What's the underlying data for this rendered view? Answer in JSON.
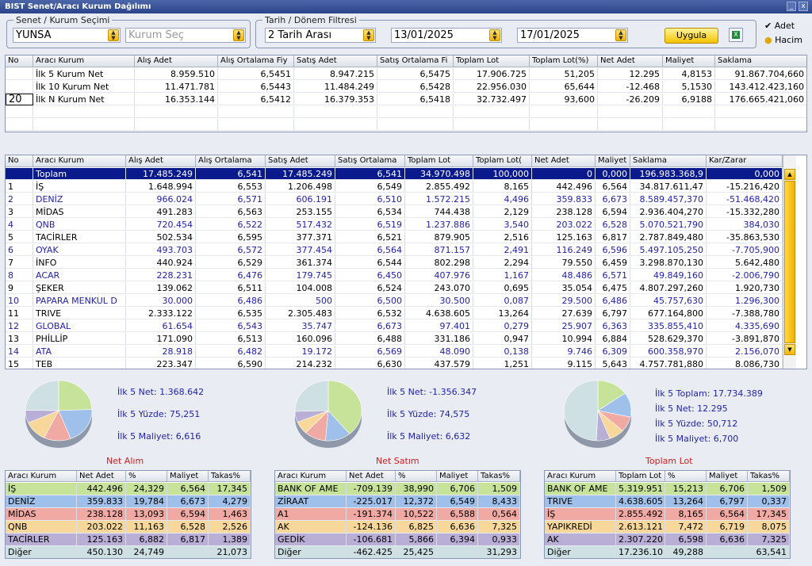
{
  "title": "BIST Senet/Aracı Kurum Dağılımı",
  "window_buttons": {
    "minimize": "_",
    "close": "x"
  },
  "filters": {
    "senet_legend": "Senet / Kurum Seçimi",
    "senet_value": "YUNSA",
    "kurum_placeholder": "Kurum Seç",
    "tarih_legend": "Tarih / Dönem Filtresi",
    "period_value": "2 Tarih Arası",
    "date_from": "13/01/2025",
    "date_to": "17/01/2025",
    "apply_label": "Uygula",
    "excel_glyph": "X",
    "opt_adet": "Adet",
    "opt_hacim": "Hacim"
  },
  "summary": {
    "columns": [
      "No",
      "Aracı Kurum",
      "Alış Adet",
      "Alış Ortalama Fiy",
      "Satış Adet",
      "Satış Ortalama Fi",
      "Toplam Lot",
      "Toplam Lot(%)",
      "Net Adet",
      "Maliyet",
      "Saklama"
    ],
    "rows": [
      [
        "",
        "İlk 5 Kurum Net",
        "8.959.510",
        "6,5451",
        "8.947.215",
        "6,5475",
        "17.906.725",
        "51,205",
        "12.295",
        "4,8153",
        "91.867.704,660"
      ],
      [
        "",
        "İlk 10 Kurum Net",
        "11.471.781",
        "6,5443",
        "11.484.249",
        "6,5428",
        "22.956.030",
        "65,644",
        "-12.468",
        "5,1530",
        "143.412.423,160"
      ],
      [
        "20",
        "İlk N Kurum Net",
        "16.353.144",
        "6,5412",
        "16.379.353",
        "6,5418",
        "32.732.497",
        "93,600",
        "-26.209",
        "6,9188",
        "176.665.421,060"
      ]
    ]
  },
  "main": {
    "columns": [
      "No",
      "Aracı Kurum",
      "Alış Adet",
      "Alış Ortalama",
      "Satış Adet",
      "Satış Ortalama",
      "Toplam Lot",
      "Toplam Lot(",
      "Net Adet",
      "Maliyet",
      "Saklama",
      "Kar/Zarar"
    ],
    "rows": [
      [
        "",
        "Toplam",
        "17.485.249",
        "6,541",
        "17.485.249",
        "6,541",
        "34.970.498",
        "100,000",
        "0",
        "0,000",
        "196.983.368,9",
        "0,000"
      ],
      [
        "1",
        "İŞ",
        "1.648.994",
        "6,553",
        "1.206.498",
        "6,549",
        "2.855.492",
        "8,165",
        "442.496",
        "6,564",
        "34.817.611,47",
        "-15.216,420"
      ],
      [
        "2",
        "DENİZ",
        "966.024",
        "6,571",
        "606.191",
        "6,510",
        "1.572.215",
        "4,496",
        "359.833",
        "6,673",
        "8.589.457,370",
        "-51.468,420"
      ],
      [
        "3",
        "MİDAS",
        "491.283",
        "6,563",
        "253.155",
        "6,534",
        "744.438",
        "2,129",
        "238.128",
        "6,594",
        "2.936.404,270",
        "-15.332,280"
      ],
      [
        "4",
        "QNB",
        "720.454",
        "6,522",
        "517.432",
        "6,519",
        "1.237.886",
        "3,540",
        "203.022",
        "6,528",
        "5.070.521,790",
        "384,030"
      ],
      [
        "5",
        "TACİRLER",
        "502.534",
        "6,595",
        "377.371",
        "6,521",
        "879.905",
        "2,516",
        "125.163",
        "6,817",
        "2.787.849,480",
        "-35.863,530"
      ],
      [
        "6",
        "OYAK",
        "493.703",
        "6,572",
        "377.454",
        "6,564",
        "871.157",
        "2,491",
        "116.249",
        "6,596",
        "5.497.105,250",
        "-7.705,900"
      ],
      [
        "7",
        "İNFO",
        "440.924",
        "6,529",
        "361.374",
        "6,544",
        "802.298",
        "2,294",
        "79.550",
        "6,459",
        "3.298.870,130",
        "5.642,480"
      ],
      [
        "8",
        "ACAR",
        "228.231",
        "6,476",
        "179.745",
        "6,450",
        "407.976",
        "1,167",
        "48.486",
        "6,571",
        "49.849,160",
        "-2.006,790"
      ],
      [
        "9",
        "ŞEKER",
        "139.062",
        "6,511",
        "104.008",
        "6,524",
        "243.070",
        "0,695",
        "35.054",
        "6,475",
        "4.807.297,260",
        "1.920,730"
      ],
      [
        "10",
        "PAPARA MENKUL D",
        "30.000",
        "6,486",
        "500",
        "6,500",
        "30.500",
        "0,087",
        "29.500",
        "6,486",
        "45.757,630",
        "1.296,300"
      ],
      [
        "11",
        "TRIVE",
        "2.333.122",
        "6,535",
        "2.305.483",
        "6,532",
        "4.638.605",
        "13,264",
        "27.639",
        "6,797",
        "677.164,800",
        "-7.388,780"
      ],
      [
        "12",
        "GLOBAL",
        "61.654",
        "6,543",
        "35.747",
        "6,673",
        "97.401",
        "0,279",
        "25.907",
        "6,363",
        "335.855,410",
        "4.335,690"
      ],
      [
        "13",
        "PHİLLİP",
        "171.090",
        "6,513",
        "160.096",
        "6,488",
        "331.186",
        "0,947",
        "10.994",
        "6,884",
        "528.629,370",
        "-3.891,870"
      ],
      [
        "14",
        "ATA",
        "28.918",
        "6,482",
        "19.172",
        "6,569",
        "48.090",
        "0,138",
        "9.746",
        "6,309",
        "600.358,970",
        "2.156,070"
      ],
      [
        "15",
        "TEB",
        "223.347",
        "6,590",
        "214.232",
        "6,630",
        "437.579",
        "1,251",
        "9.115",
        "5,643",
        "4.757.781,880",
        "8.086,730"
      ]
    ]
  },
  "panels": [
    {
      "title": "Net Alım",
      "stats": [
        "İlk 5 Net: 1.368.642",
        "İlk 5 Yüzde: 75,251",
        "İlk 5 Maliyet: 6,616"
      ],
      "columns": [
        "Aracı Kurum",
        "Net Adet",
        "%",
        "Maliyet",
        "Takas%"
      ],
      "rows": [
        [
          "İŞ",
          "442.496",
          "24,329",
          "6,564",
          "17,345"
        ],
        [
          "DENİZ",
          "359.833",
          "19,784",
          "6,673",
          "4,279"
        ],
        [
          "MİDAS",
          "238.128",
          "13,093",
          "6,594",
          "1,463"
        ],
        [
          "QNB",
          "203.022",
          "11,163",
          "6,528",
          "2,526"
        ],
        [
          "TACİRLER",
          "125.163",
          "6,882",
          "6,817",
          "1,389"
        ],
        [
          "Diğer",
          "450.130",
          "24,749",
          "",
          "21,073"
        ]
      ],
      "slices": [
        24.329,
        19.784,
        13.093,
        11.163,
        6.882,
        24.749
      ]
    },
    {
      "title": "Net Satım",
      "stats": [
        "İlk 5 Net: -1.356.347",
        "İlk 5 Yüzde: 74,575",
        "İlk 5 Maliyet: 6,632"
      ],
      "columns": [
        "Aracı Kurum",
        "Net Adet",
        "%",
        "Maliyet",
        "Takas%"
      ],
      "rows": [
        [
          "BANK OF AME",
          "-709.139",
          "38,990",
          "6,706",
          "1,509"
        ],
        [
          "ZİRAAT",
          "-225.017",
          "12,372",
          "6,549",
          "8,433"
        ],
        [
          "A1",
          "-191.374",
          "10,522",
          "6,588",
          "0,564"
        ],
        [
          "AK",
          "-124.136",
          "6,825",
          "6,636",
          "7,325"
        ],
        [
          "GEDİK",
          "-106.681",
          "5,866",
          "6,394",
          "0,933"
        ],
        [
          "Diğer",
          "-462.425",
          "25,425",
          "",
          "31,293"
        ]
      ],
      "slices": [
        38.99,
        12.372,
        10.522,
        6.825,
        5.866,
        25.425
      ]
    },
    {
      "title": "Toplam Lot",
      "stats": [
        "İlk 5 Toplam: 17.734.389",
        "İlk 5 Net: 12.295",
        "İlk 5 Yüzde: 50,712",
        "İlk 5 Maliyet: 6,700"
      ],
      "columns": [
        "Aracı Kurum",
        "Toplam Lot",
        "%",
        "Maliyet",
        "Takas%"
      ],
      "rows": [
        [
          "BANK OF AME",
          "5.319.951",
          "15,213",
          "6,706",
          "1,509"
        ],
        [
          "TRIVE",
          "4.638.605",
          "13,264",
          "6,797",
          "0,337"
        ],
        [
          "İŞ",
          "2.855.492",
          "8,165",
          "6,564",
          "17,345"
        ],
        [
          "YAPIKREDİ",
          "2.613.121",
          "7,472",
          "6,719",
          "8,075"
        ],
        [
          "AK",
          "2.307.220",
          "6,598",
          "6,636",
          "7,325"
        ],
        [
          "Diğer",
          "17.236.10",
          "49,288",
          "",
          "63,541"
        ]
      ],
      "slices": [
        15.213,
        13.264,
        8.165,
        7.472,
        6.598,
        49.288
      ]
    }
  ],
  "colors": {
    "row_bg": [
      "#c7e39a",
      "#9fc0ea",
      "#f0a9a3",
      "#f7d89a",
      "#b8aed6",
      "#cfe0e4"
    ],
    "selected": "#0a1a8c",
    "stat_text": "#2222aa",
    "panel_title": "#d21c1c"
  }
}
